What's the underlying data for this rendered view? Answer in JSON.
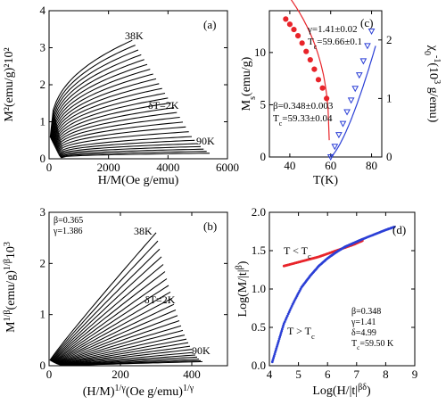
{
  "chart_data": [
    {
      "panel": "(a)",
      "type": "line",
      "xlabel": "H/M(Oe g/emu)",
      "ylabel": "M²(emu/g)²10²",
      "xlim": [
        0,
        6000
      ],
      "ylim": [
        0,
        4
      ],
      "xticks": [
        0,
        2000,
        4000,
        6000
      ],
      "yticks": [
        0,
        1,
        2,
        3,
        4
      ],
      "annotations": [
        "38K",
        "δT=2K",
        "90K"
      ],
      "series_family": {
        "count": 27,
        "temperatures_K": [
          38,
          40,
          42,
          44,
          46,
          48,
          50,
          52,
          54,
          56,
          58,
          60,
          62,
          64,
          66,
          68,
          70,
          72,
          74,
          76,
          78,
          80,
          82,
          84,
          86,
          88,
          90
        ],
        "end_x": [
          2800,
          2900,
          3000,
          3100,
          3200,
          3300,
          3400,
          3500,
          3600,
          3700,
          3800,
          3900,
          4000,
          4100,
          4200,
          4300,
          4400,
          4500,
          4600,
          4700,
          4800,
          4900,
          5000,
          5100,
          5200,
          5300,
          5400
        ],
        "end_y": [
          3.2,
          3.07,
          2.94,
          2.81,
          2.68,
          2.55,
          2.42,
          2.29,
          2.16,
          2.03,
          1.9,
          1.77,
          1.64,
          1.51,
          1.38,
          1.25,
          1.12,
          0.99,
          0.86,
          0.73,
          0.6,
          0.5,
          0.41,
          0.33,
          0.26,
          0.2,
          0.15
        ]
      }
    },
    {
      "panel": "(b)",
      "type": "line",
      "xlabel": "(H/M)^{1/γ}(Oe g/emu)^{1/γ}",
      "ylabel": "M^{1/β}(emu/g)^{1/β}10³",
      "xlim": [
        0,
        500
      ],
      "ylim": [
        0,
        3
      ],
      "xticks": [
        0,
        200,
        400
      ],
      "yticks": [
        0,
        1,
        2,
        3
      ],
      "annotations": [
        "β=0.365",
        "γ=1.386",
        "38K",
        "δT=2K",
        "90K"
      ],
      "series_family": {
        "count": 27,
        "temperatures_K": [
          38,
          40,
          42,
          44,
          46,
          48,
          50,
          52,
          54,
          56,
          58,
          60,
          62,
          64,
          66,
          68,
          70,
          72,
          74,
          76,
          78,
          80,
          82,
          84,
          86,
          88,
          90
        ],
        "end_x": [
          300,
          305,
          310,
          315,
          320,
          325,
          330,
          335,
          340,
          345,
          350,
          355,
          360,
          365,
          370,
          375,
          380,
          385,
          390,
          395,
          400,
          405,
          410,
          415,
          420,
          425,
          430
        ],
        "end_y": [
          2.6,
          2.44,
          2.28,
          2.13,
          1.98,
          1.84,
          1.7,
          1.57,
          1.44,
          1.32,
          1.2,
          1.09,
          0.98,
          0.88,
          0.78,
          0.69,
          0.6,
          0.52,
          0.45,
          0.38,
          0.32,
          0.26,
          0.21,
          0.17,
          0.13,
          0.1,
          0.08
        ]
      }
    },
    {
      "panel": "(c)",
      "type": "scatter",
      "xlabel": "T(K)",
      "ylabel": "Ms(emu/g)",
      "ylabel_right": "χ0⁻¹(10³ g/emu)",
      "xlim": [
        30,
        85
      ],
      "ylim": [
        0,
        14
      ],
      "ylim_right": [
        0,
        2.5
      ],
      "xticks": [
        40,
        60,
        80
      ],
      "yticks": [
        0,
        5,
        10
      ],
      "yticks_right": [
        0,
        1,
        2
      ],
      "annotations": [
        "γ=1.41±0.02",
        "Tc=59.66±0.1",
        "β=0.348±0.003",
        "Tc=59.33±0.04"
      ],
      "series": [
        {
          "axis": "left",
          "color": "#e8242a",
          "x": [
            38,
            40,
            42,
            44,
            46,
            48,
            50,
            52,
            54,
            56,
            58
          ],
          "y": [
            13.2,
            12.7,
            12.2,
            11.6,
            10.9,
            10.1,
            9.3,
            8.4,
            7.4,
            6.6,
            5.6
          ]
        },
        {
          "axis": "right",
          "color": "#2b3fd6",
          "x": [
            60,
            62,
            64,
            66,
            68,
            70,
            72,
            74,
            76,
            78,
            80
          ],
          "y": [
            0.0,
            0.18,
            0.38,
            0.57,
            0.77,
            0.97,
            1.17,
            1.4,
            1.64,
            1.9,
            2.15
          ]
        }
      ]
    },
    {
      "panel": "(d)",
      "type": "scatter",
      "xlabel": "Log(H/|t|^{βδ})",
      "ylabel": "Log(M/|t|^β)",
      "xlim": [
        4,
        9
      ],
      "ylim": [
        0,
        2
      ],
      "xticks": [
        4,
        5,
        6,
        7,
        8,
        9
      ],
      "yticks": [
        0.0,
        0.5,
        1.0,
        1.5,
        2.0
      ],
      "annotations": [
        "T < Tc",
        "T > Tc",
        "β=0.348",
        "γ=1.41",
        "δ=4.99",
        "Tc=59.50 K"
      ],
      "series": [
        {
          "name": "T < Tc",
          "color": "#e8242a",
          "x": [
            4.5,
            4.8,
            5.1,
            5.4,
            5.7,
            6.0,
            6.3,
            6.6,
            6.9,
            7.2
          ],
          "y": [
            1.3,
            1.33,
            1.36,
            1.39,
            1.42,
            1.46,
            1.5,
            1.54,
            1.58,
            1.63
          ]
        },
        {
          "name": "T > Tc",
          "color": "#2b3fd6",
          "x": [
            4.1,
            4.3,
            4.5,
            4.8,
            5.1,
            5.4,
            5.7,
            6.0,
            6.3,
            6.6,
            6.9,
            7.2,
            7.6,
            8.0,
            8.3
          ],
          "y": [
            0.05,
            0.3,
            0.55,
            0.8,
            1.02,
            1.17,
            1.3,
            1.4,
            1.48,
            1.55,
            1.6,
            1.65,
            1.71,
            1.77,
            1.81
          ]
        }
      ]
    }
  ]
}
